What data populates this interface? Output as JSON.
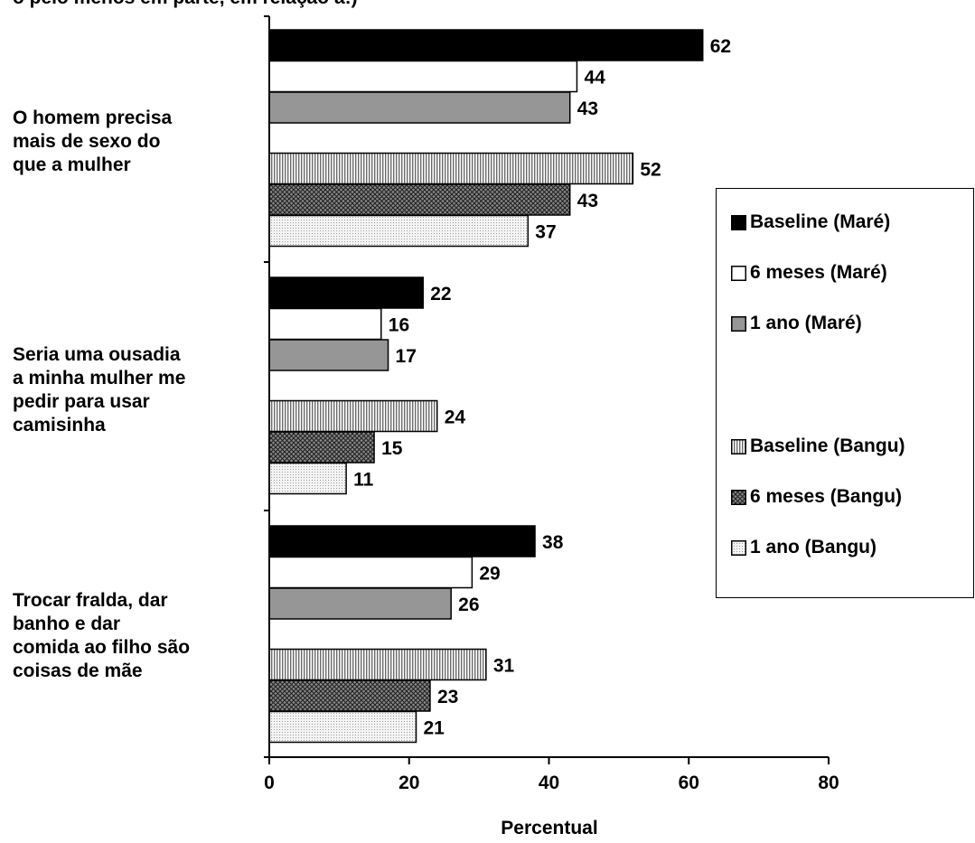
{
  "title_fragment": "o pelo menos em parte, em relação a:)",
  "chart_data": {
    "type": "bar",
    "orientation": "horizontal",
    "xlabel": "Percentual",
    "xlim": [
      0,
      80
    ],
    "xticks": [
      "0",
      "20",
      "40",
      "60",
      "80"
    ],
    "categories": [
      "O homem precisa\nmais de sexo do\nque a mulher",
      "Seria uma ousadia\na minha mulher me\npedir para usar\ncamisinha",
      "Trocar fralda, dar\nbanho e dar\ncomida ao filho são\ncoisas de mãe"
    ],
    "series": [
      {
        "name": "Baseline (Maré)",
        "values": [
          62,
          22,
          38
        ],
        "fill": "#000000",
        "pattern": "solid"
      },
      {
        "name": "6 meses (Maré)",
        "values": [
          44,
          16,
          29
        ],
        "fill": "#ffffff",
        "pattern": "solid"
      },
      {
        "name": "1 ano (Maré)",
        "values": [
          43,
          17,
          26
        ],
        "fill": "#969696",
        "pattern": "solid"
      },
      {
        "name": "Baseline (Bangu)",
        "values": [
          52,
          24,
          31
        ],
        "fill": "#d9d9d9",
        "pattern": "vertical-lines"
      },
      {
        "name": "6 meses (Bangu)",
        "values": [
          43,
          15,
          23
        ],
        "fill": "#6e6e6e",
        "pattern": "crosshatch"
      },
      {
        "name": "1 ano (Bangu)",
        "values": [
          37,
          11,
          21
        ],
        "fill": "#e6e6e6",
        "pattern": "dots"
      }
    ],
    "legend_position": "right",
    "grid": false
  }
}
